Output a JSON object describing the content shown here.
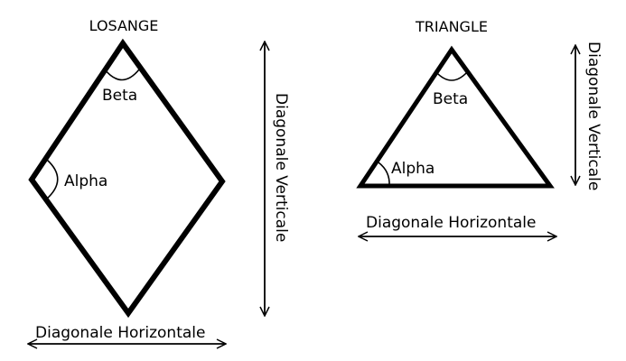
{
  "losange": {
    "title": "LOSANGE",
    "angle_beta": "Beta",
    "angle_alpha": "Alpha",
    "horizontal_diagonal": "Diagonale Horizontale",
    "vertical_diagonal": "Diagonale Verticale"
  },
  "triangle": {
    "title": "TRIANGLE",
    "angle_beta": "Beta",
    "angle_alpha": "Alpha",
    "horizontal_diagonal": "Diagonale Horizontale",
    "vertical_diagonal": "Diagonale Verticale"
  }
}
